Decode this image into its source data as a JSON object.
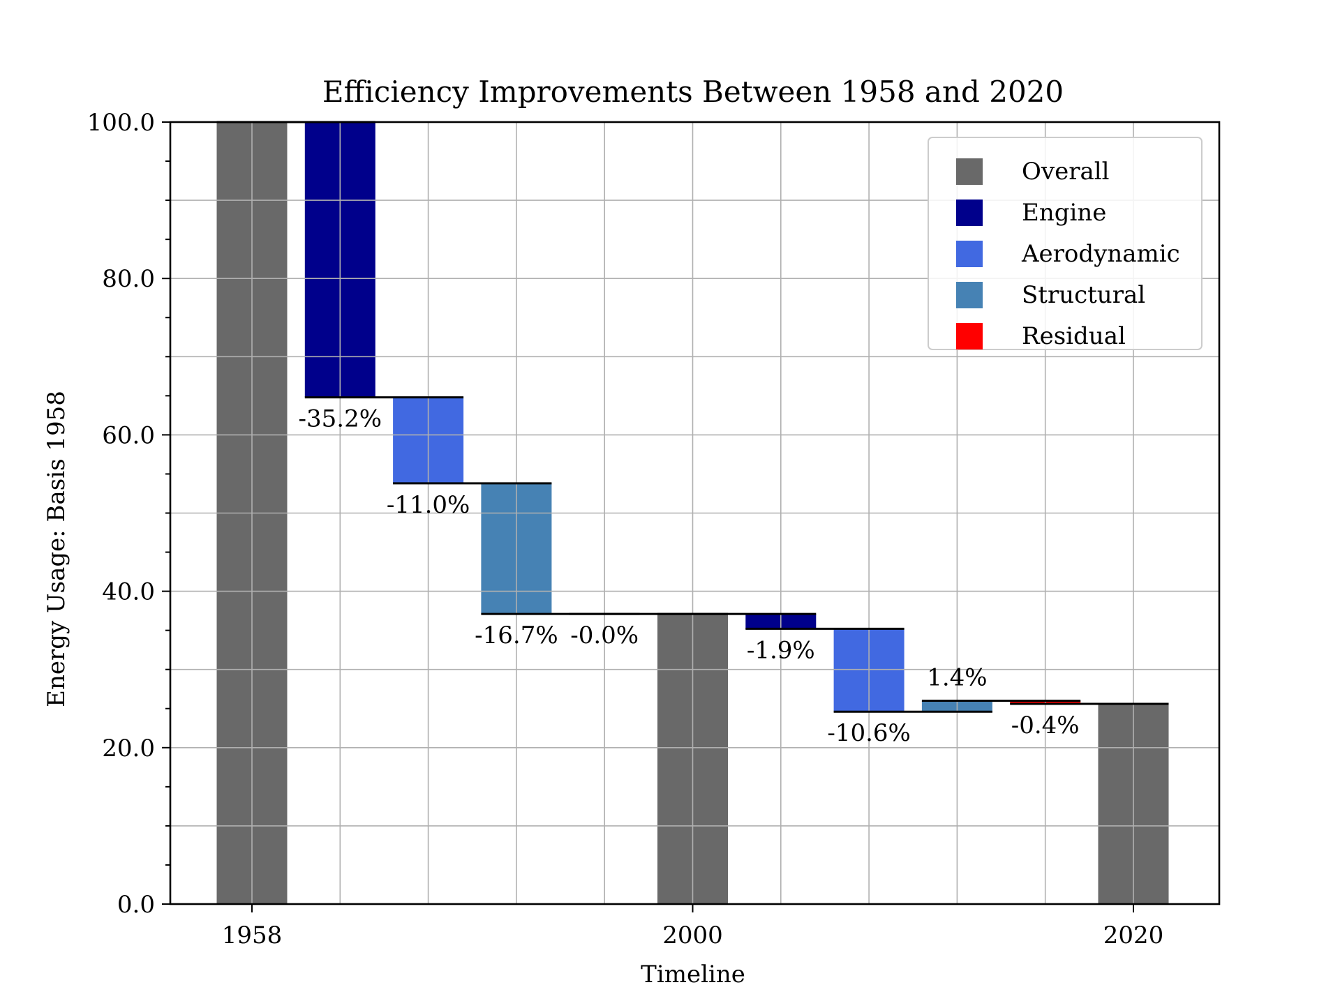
{
  "chart_data": {
    "type": "bar",
    "title": "Efficiency Improvements Between 1958 and 2020",
    "xlabel": "Timeline",
    "ylabel": "Energy Usage: Basis 1958",
    "ylim": [
      0,
      100
    ],
    "y_ticks": [
      "0.0",
      "20.0",
      "40.0",
      "60.0",
      "80.0",
      "100.0"
    ],
    "x_ticks": [
      {
        "label": "1958",
        "index": 0
      },
      {
        "label": "2000",
        "index": 5
      },
      {
        "label": "2020",
        "index": 10
      }
    ],
    "grid": true,
    "legend_position": "top-right",
    "colors": {
      "Overall": "#696969",
      "Engine": "#00008b",
      "Aerodynamic": "#4169e1",
      "Structural": "#4682b4",
      "Residual": "#ff0000"
    },
    "legend": [
      "Overall",
      "Engine",
      "Aerodynamic",
      "Structural",
      "Residual"
    ],
    "bars": [
      {
        "category": "Overall",
        "bottom": 0.0,
        "top": 100.0,
        "label": ""
      },
      {
        "category": "Engine",
        "bottom": 64.8,
        "top": 100.0,
        "label": "-35.2%"
      },
      {
        "category": "Aerodynamic",
        "bottom": 53.8,
        "top": 64.8,
        "label": "-11.0%"
      },
      {
        "category": "Structural",
        "bottom": 37.1,
        "top": 53.8,
        "label": "-16.7%"
      },
      {
        "category": "Residual",
        "bottom": 37.1,
        "top": 37.1,
        "label": "-0.0%"
      },
      {
        "category": "Overall",
        "bottom": 0.0,
        "top": 37.1,
        "label": ""
      },
      {
        "category": "Engine",
        "bottom": 35.2,
        "top": 37.1,
        "label": "-1.9%"
      },
      {
        "category": "Aerodynamic",
        "bottom": 24.6,
        "top": 35.2,
        "label": "-10.6%"
      },
      {
        "category": "Structural",
        "bottom": 24.6,
        "top": 26.0,
        "label": "1.4%"
      },
      {
        "category": "Residual",
        "bottom": 25.6,
        "top": 26.0,
        "label": "-0.4%"
      },
      {
        "category": "Overall",
        "bottom": 0.0,
        "top": 25.6,
        "label": ""
      }
    ]
  }
}
